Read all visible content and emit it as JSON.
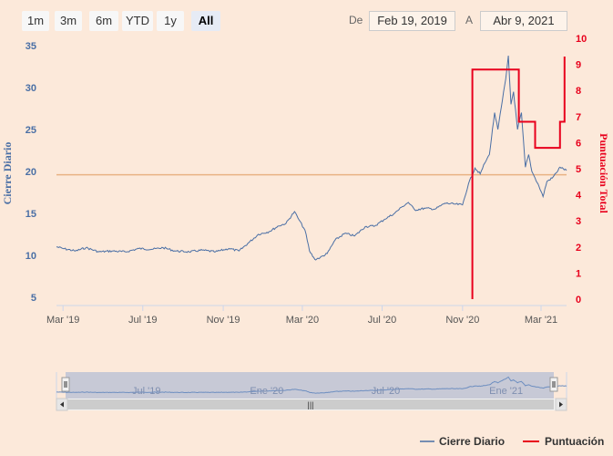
{
  "range_selector": {
    "buttons": [
      {
        "label": "1m",
        "selected": false
      },
      {
        "label": "3m",
        "selected": false
      },
      {
        "label": "6m",
        "selected": false
      },
      {
        "label": "YTD",
        "selected": false
      },
      {
        "label": "1y",
        "selected": false
      },
      {
        "label": "All",
        "selected": true
      }
    ],
    "from_label": "De",
    "from_value": "Feb 19, 2019",
    "to_label": "A",
    "to_value": "Abr 9, 2021"
  },
  "navigator": {
    "labels": [
      "Jul '19",
      "Ene '20",
      "Jul '20",
      "Ene '21"
    ],
    "scroll_grip": "|||"
  },
  "legend": {
    "items": [
      {
        "name": "Cierre Diario",
        "color": "#4a6fa5"
      },
      {
        "name": "Puntuación",
        "color": "#e8001c"
      }
    ]
  },
  "colors": {
    "background": "#fce9da",
    "price_line": "#4a6fa5",
    "score_line": "#e8001c",
    "reference_line": "#e8b384"
  },
  "chart_data": {
    "type": "line",
    "x_labels": [
      "Mar '19",
      "Jul '19",
      "Nov '19",
      "Mar '20",
      "Jul '20",
      "Nov '20",
      "Mar '21"
    ],
    "x_range": [
      "2019-02-19",
      "2021-04-09"
    ],
    "y_left": {
      "label": "Cierre Diario",
      "ticks": [
        5,
        10,
        15,
        20,
        25,
        30,
        35
      ],
      "range": [
        4,
        35
      ]
    },
    "y_right": {
      "label": "Puntuación Total",
      "ticks": [
        0,
        1,
        2,
        3,
        4,
        5,
        6,
        7,
        8,
        9,
        10
      ],
      "range": [
        0,
        10
      ]
    },
    "reference_line": {
      "axis": "left",
      "value": 19.6
    },
    "grid": false,
    "legend_position": "bottom-right",
    "series": [
      {
        "name": "Cierre Diario",
        "axis": "left",
        "points": [
          [
            "2019-02-19",
            11.0
          ],
          [
            "2019-03-01",
            10.8
          ],
          [
            "2019-03-20",
            10.5
          ],
          [
            "2019-04-05",
            10.9
          ],
          [
            "2019-04-25",
            10.4
          ],
          [
            "2019-05-15",
            10.5
          ],
          [
            "2019-06-05",
            10.4
          ],
          [
            "2019-06-25",
            10.8
          ],
          [
            "2019-07-15",
            10.7
          ],
          [
            "2019-08-01",
            10.9
          ],
          [
            "2019-08-20",
            10.5
          ],
          [
            "2019-09-10",
            10.4
          ],
          [
            "2019-09-30",
            10.6
          ],
          [
            "2019-10-20",
            10.4
          ],
          [
            "2019-11-10",
            10.8
          ],
          [
            "2019-11-25",
            10.5
          ],
          [
            "2019-12-10",
            11.5
          ],
          [
            "2019-12-25",
            12.5
          ],
          [
            "2020-01-10",
            12.8
          ],
          [
            "2020-01-25",
            13.5
          ],
          [
            "2020-02-05",
            13.8
          ],
          [
            "2020-02-18",
            15.2
          ],
          [
            "2020-02-25",
            14.2
          ],
          [
            "2020-03-05",
            13.0
          ],
          [
            "2020-03-12",
            10.5
          ],
          [
            "2020-03-20",
            9.5
          ],
          [
            "2020-03-28",
            9.7
          ],
          [
            "2020-04-08",
            10.2
          ],
          [
            "2020-04-20",
            11.8
          ],
          [
            "2020-05-05",
            12.6
          ],
          [
            "2020-05-20",
            12.3
          ],
          [
            "2020-06-05",
            13.4
          ],
          [
            "2020-06-20",
            13.5
          ],
          [
            "2020-07-05",
            14.3
          ],
          [
            "2020-07-20",
            15.0
          ],
          [
            "2020-08-01",
            15.8
          ],
          [
            "2020-08-10",
            16.3
          ],
          [
            "2020-08-20",
            15.4
          ],
          [
            "2020-09-05",
            15.6
          ],
          [
            "2020-09-20",
            15.5
          ],
          [
            "2020-10-05",
            16.2
          ],
          [
            "2020-10-20",
            16.1
          ],
          [
            "2020-11-01",
            16.0
          ],
          [
            "2020-11-10",
            18.5
          ],
          [
            "2020-11-20",
            20.4
          ],
          [
            "2020-11-28",
            19.7
          ],
          [
            "2020-12-05",
            21.0
          ],
          [
            "2020-12-12",
            22.0
          ],
          [
            "2020-12-20",
            27.0
          ],
          [
            "2020-12-25",
            25.0
          ],
          [
            "2021-01-01",
            28.5
          ],
          [
            "2021-01-06",
            31.0
          ],
          [
            "2021-01-10",
            33.8
          ],
          [
            "2021-01-14",
            28.0
          ],
          [
            "2021-01-18",
            29.5
          ],
          [
            "2021-01-24",
            25.0
          ],
          [
            "2021-01-30",
            27.0
          ],
          [
            "2021-02-05",
            20.5
          ],
          [
            "2021-02-10",
            22.0
          ],
          [
            "2021-02-15",
            20.0
          ],
          [
            "2021-02-20",
            19.2
          ],
          [
            "2021-02-26",
            18.2
          ],
          [
            "2021-03-04",
            17.0
          ],
          [
            "2021-03-10",
            18.8
          ],
          [
            "2021-03-18",
            19.2
          ],
          [
            "2021-03-24",
            19.8
          ],
          [
            "2021-03-30",
            20.5
          ],
          [
            "2021-04-09",
            20.1
          ]
        ]
      },
      {
        "name": "Puntuación",
        "axis": "right",
        "step": true,
        "points": [
          [
            "2020-11-16",
            0
          ],
          [
            "2020-11-16",
            8.8
          ],
          [
            "2021-01-26",
            8.8
          ],
          [
            "2021-01-26",
            6.8
          ],
          [
            "2021-02-20",
            6.8
          ],
          [
            "2021-02-20",
            5.8
          ],
          [
            "2021-03-30",
            5.8
          ],
          [
            "2021-03-30",
            6.8
          ],
          [
            "2021-04-06",
            6.8
          ],
          [
            "2021-04-06",
            9.3
          ]
        ]
      }
    ]
  }
}
